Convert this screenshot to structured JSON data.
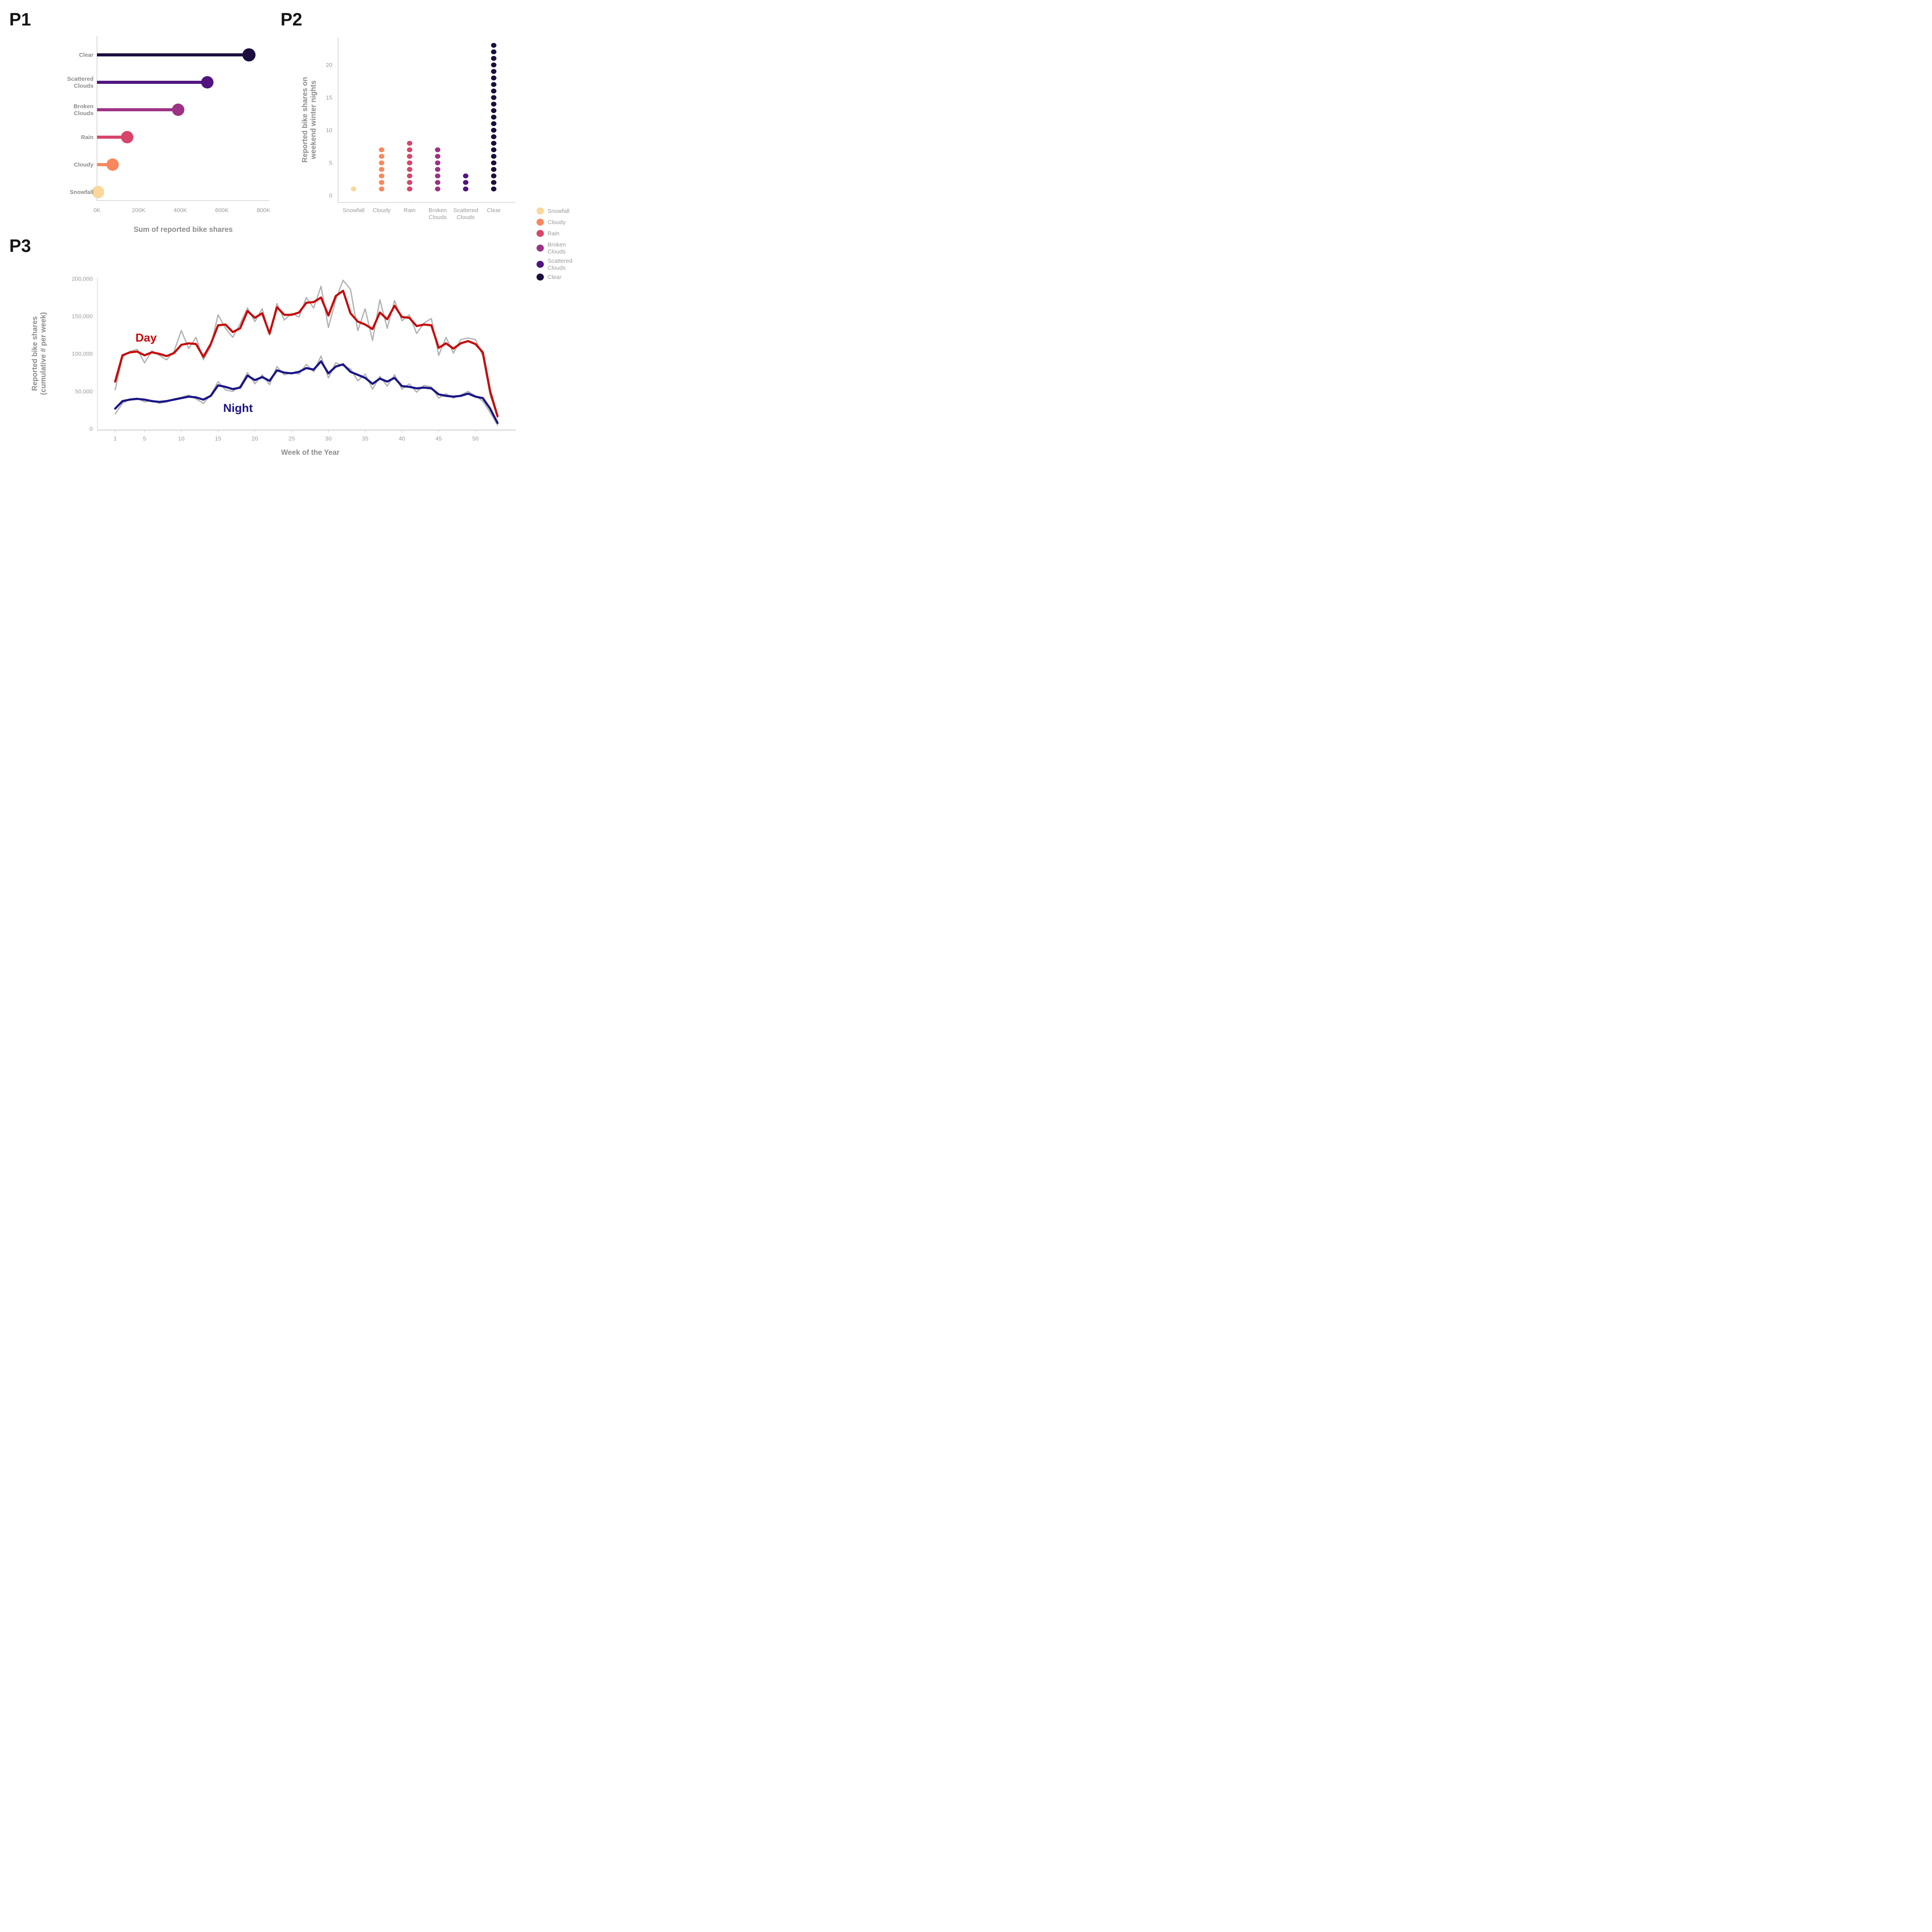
{
  "panels": {
    "p1": {
      "label": "P1",
      "xlabel": "Sum of reported bike shares",
      "x_tick_labels": [
        "0K",
        "200K",
        "400K",
        "600K",
        "800K"
      ]
    },
    "p2": {
      "label": "P2",
      "ylabel_lines": [
        "Reported bike shares on",
        "weekend winter nights"
      ],
      "y_tick_labels": [
        "0",
        "5",
        "10",
        "15",
        "20"
      ]
    },
    "p3": {
      "label": "P3",
      "xlabel": "Week of the Year",
      "ylabel_lines": [
        "Reported bike shares",
        "(cumulative # per week)"
      ],
      "day_label": "Day",
      "night_label": "Night"
    },
    "legend": {
      "items": [
        {
          "label_lines": [
            "Snowfall"
          ],
          "color": "#FBD79B"
        },
        {
          "label_lines": [
            "Cloudy"
          ],
          "color": "#F8875D"
        },
        {
          "label_lines": [
            "Rain"
          ],
          "color": "#D7456B"
        },
        {
          "label_lines": [
            "Broken",
            "Clouds"
          ],
          "color": "#9C3385"
        },
        {
          "label_lines": [
            "Scattered",
            "Clouds"
          ],
          "color": "#50157F"
        },
        {
          "label_lines": [
            "Clear"
          ],
          "color": "#1C0E3E"
        }
      ]
    }
  },
  "chart_data": [
    {
      "id": "p1",
      "type": "bar",
      "subtype": "lollipop-horizontal",
      "title": "",
      "xlabel": "Sum of reported bike shares",
      "ylabel": "",
      "categories": [
        "Clear",
        "Scattered Clouds",
        "Broken Clouds",
        "Rain",
        "Cloudy",
        "Snowfall"
      ],
      "categories_wrapped": [
        [
          "Clear"
        ],
        [
          "Scattered",
          "Clouds"
        ],
        [
          "Broken",
          "Clouds"
        ],
        [
          "Rain"
        ],
        [
          "Cloudy"
        ],
        [
          "Snowfall"
        ]
      ],
      "values": [
        730000,
        530000,
        390000,
        145000,
        75000,
        5000
      ],
      "colors": [
        "#1C0E3E",
        "#50157F",
        "#9C3385",
        "#D7456B",
        "#F8875D",
        "#FBD79B"
      ],
      "xlim": [
        0,
        800000
      ],
      "x_tick_values": [
        0,
        200000,
        400000,
        600000,
        800000
      ],
      "x_tick_labels": [
        "0K",
        "200K",
        "400K",
        "600K",
        "800K"
      ],
      "grid": false
    },
    {
      "id": "p2",
      "type": "scatter",
      "subtype": "dot-strip-counts",
      "title": "",
      "xlabel": "",
      "ylabel": "Reported bike shares on weekend winter nights",
      "categories": [
        "Snowfall",
        "Cloudy",
        "Rain",
        "Broken Clouds",
        "Scattered Clouds",
        "Clear"
      ],
      "categories_wrapped": [
        [
          "Snowfall"
        ],
        [
          "Cloudy"
        ],
        [
          "Rain"
        ],
        [
          "Broken",
          "Clouds"
        ],
        [
          "Scattered",
          "Clouds"
        ],
        [
          "Clear"
        ]
      ],
      "dot_counts": [
        1,
        7,
        8,
        7,
        3,
        23
      ],
      "colors": [
        "#FBD79B",
        "#F8875D",
        "#D7456B",
        "#9C3385",
        "#50157F",
        "#1C0E3E"
      ],
      "ylim": [
        0,
        23
      ],
      "y_tick_values": [
        0,
        5,
        10,
        15,
        20
      ],
      "y_tick_labels": [
        "0",
        "5",
        "10",
        "15",
        "20"
      ],
      "grid": false,
      "legend_position": "right"
    },
    {
      "id": "p3",
      "type": "line",
      "title": "",
      "xlabel": "Week of the Year",
      "ylabel": "Reported bike shares (cumulative # per week)",
      "x_weeks": [
        1,
        2,
        3,
        4,
        5,
        6,
        7,
        8,
        9,
        10,
        11,
        12,
        13,
        14,
        15,
        16,
        17,
        18,
        19,
        20,
        21,
        22,
        23,
        24,
        25,
        26,
        27,
        28,
        29,
        30,
        31,
        32,
        33,
        34,
        35,
        36,
        37,
        38,
        39,
        40,
        41,
        42,
        43,
        44,
        45,
        46,
        47,
        48,
        49,
        50,
        51,
        52,
        53
      ],
      "series": [
        {
          "name": "Day raw",
          "role": "raw",
          "color": "#B1B1B1",
          "values": [
            52000,
            96000,
            103000,
            106000,
            88000,
            104000,
            98000,
            92000,
            103000,
            131000,
            107000,
            122000,
            92000,
            110000,
            152000,
            134000,
            122000,
            140000,
            161000,
            143000,
            160000,
            125000,
            167000,
            145000,
            154000,
            149000,
            175000,
            161000,
            190000,
            135000,
            172000,
            198000,
            186000,
            131000,
            160000,
            118000,
            172000,
            134000,
            171000,
            144000,
            152000,
            127000,
            141000,
            147000,
            98000,
            122000,
            101000,
            119000,
            121000,
            119000,
            97000,
            45000,
            15000
          ]
        },
        {
          "name": "Night raw",
          "role": "raw",
          "color": "#B1B1B1",
          "values": [
            20000,
            34000,
            40000,
            41000,
            36000,
            38000,
            34000,
            36000,
            40000,
            42000,
            45000,
            40000,
            34000,
            45000,
            63000,
            52000,
            50000,
            57000,
            75000,
            60000,
            72000,
            59000,
            83000,
            72000,
            75000,
            73000,
            86000,
            76000,
            97000,
            68000,
            88000,
            84000,
            80000,
            64000,
            73000,
            53000,
            70000,
            57000,
            72000,
            53000,
            60000,
            49000,
            58000,
            56000,
            41000,
            47000,
            41000,
            45000,
            50000,
            44000,
            37000,
            22000,
            5000
          ]
        },
        {
          "name": "Day",
          "role": "smoothed",
          "color": "#C70B0B",
          "values": [
            63000,
            98000,
            102000,
            103000,
            98000,
            102000,
            100000,
            97000,
            101000,
            112000,
            114000,
            113000,
            96000,
            113000,
            138000,
            139000,
            129000,
            134000,
            157000,
            148000,
            154000,
            127000,
            162000,
            152000,
            152000,
            155000,
            168000,
            169000,
            175000,
            151000,
            177000,
            184000,
            154000,
            143000,
            139000,
            133000,
            155000,
            146000,
            164000,
            149000,
            148000,
            137000,
            139000,
            138000,
            108000,
            114000,
            107000,
            114000,
            117000,
            113000,
            102000,
            50000,
            17000
          ]
        },
        {
          "name": "Night",
          "role": "smoothed",
          "color": "#1B1687",
          "values": [
            27000,
            37000,
            39000,
            40000,
            39000,
            37000,
            36000,
            37000,
            39000,
            41000,
            43000,
            42000,
            39000,
            44000,
            58000,
            56000,
            53000,
            55000,
            71000,
            65000,
            69000,
            64000,
            78000,
            75000,
            74000,
            76000,
            81000,
            79000,
            90000,
            74000,
            83000,
            86000,
            76000,
            72000,
            68000,
            60000,
            67000,
            63000,
            68000,
            57000,
            56000,
            54000,
            55000,
            54000,
            46000,
            44000,
            43000,
            44000,
            47000,
            43000,
            41000,
            27000,
            8000
          ]
        }
      ],
      "ylim": [
        0,
        200000
      ],
      "y_tick_values": [
        0,
        50000,
        100000,
        150000,
        200000
      ],
      "y_tick_labels": [
        "0",
        "50,000",
        "100,000",
        "150,000",
        "200,000"
      ],
      "x_tick_values": [
        1,
        5,
        10,
        15,
        20,
        25,
        30,
        35,
        40,
        45,
        50
      ],
      "grid": false,
      "annotations": [
        {
          "text": "Day",
          "color": "#C70B0B"
        },
        {
          "text": "Night",
          "color": "#1B1687"
        }
      ]
    }
  ]
}
